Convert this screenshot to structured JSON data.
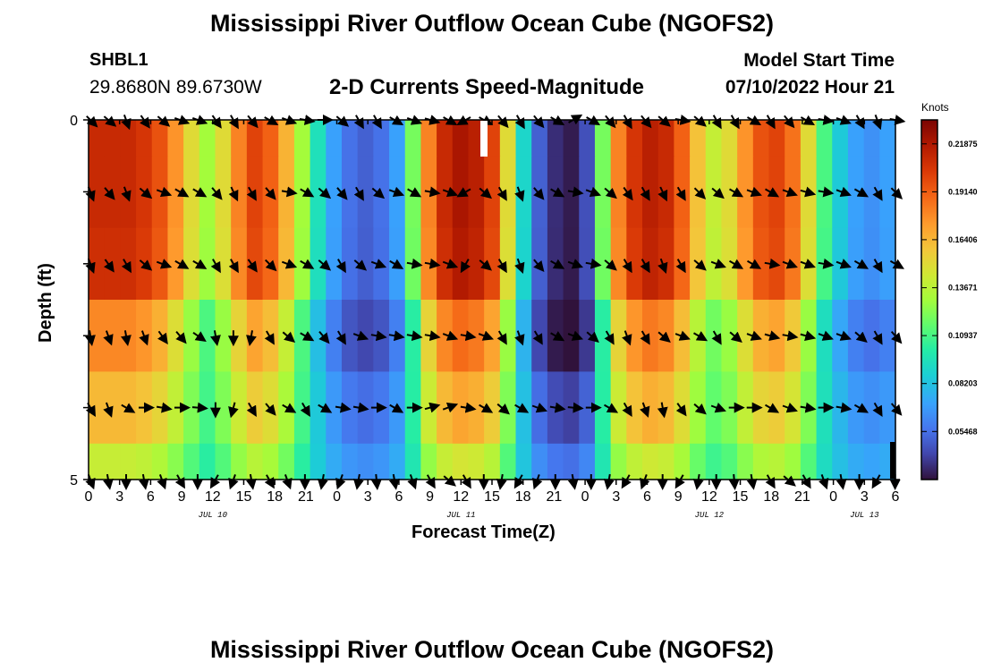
{
  "title": "Mississippi River Outflow Ocean Cube (NGOFS2)",
  "title_repeat": "Mississippi River Outflow Ocean Cube (NGOFS2)",
  "station": "SHBL1",
  "coords": "29.8680N  89.6730W",
  "subtitle": "2-D Currents Speed-Magnitude",
  "model_start_label": "Model Start Time",
  "model_start_value": "07/10/2022 Hour 21",
  "chart_data": {
    "type": "heatmap",
    "title": "2-D Currents Speed-Magnitude",
    "xlabel": "Forecast Time(Z)",
    "ylabel": "Depth (ft)",
    "ylim": [
      0,
      5
    ],
    "y_tick_labels": [
      "0",
      "5"
    ],
    "x_tick_labels": [
      "0",
      "3",
      "6",
      "9",
      "12",
      "15",
      "18",
      "21",
      "0",
      "3",
      "6",
      "9",
      "12",
      "15",
      "18",
      "21",
      "0",
      "3",
      "6",
      "9",
      "12",
      "15",
      "18",
      "21",
      "0",
      "3",
      "6"
    ],
    "date_labels": [
      {
        "label": "JUL 10",
        "hour": 12
      },
      {
        "label": "JUL 11",
        "hour": 36
      },
      {
        "label": "JUL 12",
        "hour": 60
      },
      {
        "label": "JUL 13",
        "hour": 75
      }
    ],
    "x_range_hours": [
      0,
      78
    ],
    "colorbar": {
      "units": "Knots",
      "min": 0.0273,
      "max": 0.2324,
      "tick_labels": [
        "0.21875",
        "0.19140",
        "0.16406",
        "0.13671",
        "0.10937",
        "0.08203",
        "0.05468"
      ],
      "tick_values": [
        0.21875,
        0.1914,
        0.16406,
        0.13671,
        0.10937,
        0.08203,
        0.05468
      ]
    },
    "time_profile": [
      0.21,
      0.21,
      0.21,
      0.205,
      0.195,
      0.175,
      0.15,
      0.13,
      0.15,
      0.18,
      0.2,
      0.19,
      0.165,
      0.13,
      0.095,
      0.07,
      0.055,
      0.05,
      0.055,
      0.07,
      0.12,
      0.18,
      0.21,
      0.22,
      0.215,
      0.2,
      0.15,
      0.09,
      0.05,
      0.035,
      0.03,
      0.045,
      0.12,
      0.18,
      0.205,
      0.215,
      0.21,
      0.19,
      0.16,
      0.14,
      0.15,
      0.175,
      0.195,
      0.2,
      0.185,
      0.15,
      0.11,
      0.085,
      0.07,
      0.065,
      0.07
    ],
    "layer_factors": [
      1.0,
      1.0,
      0.99,
      0.85,
      0.68,
      0.48
    ],
    "arrow_angles": [
      [
        160,
        150,
        120,
        110,
        140,
        160,
        150,
        130,
        115,
        120,
        130,
        140,
        155,
        170,
        150,
        140,
        120,
        120,
        150,
        150,
        170,
        160,
        150,
        140,
        130,
        120,
        110,
        120,
        130,
        140,
        160,
        160,
        160,
        150,
        140,
        130,
        150,
        170,
        160,
        140,
        130,
        150,
        170,
        160,
        150,
        120,
        110,
        120,
        130,
        150,
        160,
        170,
        160,
        150,
        140,
        150,
        160,
        170,
        160,
        170,
        180,
        180
      ],
      [
        140,
        150,
        120,
        130,
        150,
        160,
        150,
        130,
        120,
        120,
        130,
        140,
        160,
        170,
        150,
        140,
        125,
        120,
        150,
        150,
        170,
        170,
        160,
        150,
        140,
        130,
        125,
        120,
        130,
        140,
        160,
        180,
        170,
        150,
        140,
        130,
        150,
        170,
        160,
        140,
        130,
        150,
        170,
        160,
        150,
        120,
        110,
        120,
        130,
        150,
        160,
        170,
        160,
        150,
        140,
        150,
        160,
        180,
        160,
        170,
        180,
        180
      ]
    ],
    "arrow_layer_angles": [
      {
        "depth_row": 0,
        "angles": [
          135,
          140,
          110,
          125,
          140,
          160,
          160,
          125,
          120,
          130,
          150,
          160,
          170,
          180,
          140,
          120,
          120,
          150,
          160,
          165,
          150,
          30,
          150,
          130,
          120,
          130,
          150,
          210,
          150,
          130,
          120,
          130,
          140,
          170,
          140,
          120,
          120,
          150,
          120,
          130,
          150,
          170,
          160,
          120,
          110,
          170
        ]
      },
      {
        "depth_row": 1,
        "angles": [
          110,
          130,
          110,
          140,
          160,
          150,
          150,
          130,
          115,
          120,
          130,
          170,
          150,
          140,
          130,
          120,
          140,
          160,
          150,
          170,
          160,
          30,
          140,
          120,
          110,
          130,
          150,
          170,
          160,
          140,
          125,
          120,
          115,
          120,
          135,
          140,
          150,
          160,
          150,
          160,
          165,
          170,
          160,
          150,
          120,
          135
        ]
      },
      {
        "depth_row": 2,
        "angles": [
          110,
          125,
          120,
          140,
          160,
          150,
          150,
          120,
          120,
          125,
          135,
          160,
          150,
          140,
          120,
          140,
          160,
          150,
          170,
          170,
          160,
          60,
          140,
          120,
          110,
          130,
          150,
          160,
          170,
          140,
          120,
          120,
          110,
          120,
          140,
          160,
          150,
          150,
          170,
          160,
          160,
          170,
          160,
          150,
          120,
          150
        ]
      },
      {
        "depth_row": 3,
        "angles": [
          100,
          110,
          100,
          110,
          125,
          130,
          145,
          100,
          90,
          80,
          120,
          140,
          150,
          130,
          120,
          160,
          170,
          170,
          170,
          170,
          160,
          170,
          160,
          120,
          110,
          120,
          150,
          160,
          140,
          120,
          110,
          120,
          140,
          160,
          150,
          120,
          140,
          160,
          165,
          170,
          165,
          160,
          160,
          140,
          120,
          130
        ]
      },
      {
        "depth_row": 4,
        "angles": [
          120,
          110,
          150,
          180,
          170,
          180,
          175,
          90,
          75,
          120,
          130,
          150,
          120,
          150,
          170,
          170,
          180,
          150,
          180,
          195,
          200,
          170,
          150,
          140,
          150,
          160,
          170,
          175,
          180,
          150,
          120,
          110,
          100,
          125,
          140,
          160,
          180,
          180,
          150,
          160,
          170,
          180,
          170,
          150,
          120,
          130
        ]
      },
      {
        "depth_row": 5,
        "angles": [
          110,
          100,
          90,
          100,
          110,
          120,
          90,
          60,
          70,
          100,
          120,
          110,
          90,
          80,
          70,
          80,
          95,
          100,
          110,
          120,
          140,
          120,
          90,
          80,
          60,
          70,
          90,
          100,
          90,
          80,
          60,
          70,
          90,
          60,
          80,
          90,
          95,
          100,
          120,
          140,
          120,
          110,
          100,
          90,
          60,
          90
        ]
      }
    ]
  }
}
